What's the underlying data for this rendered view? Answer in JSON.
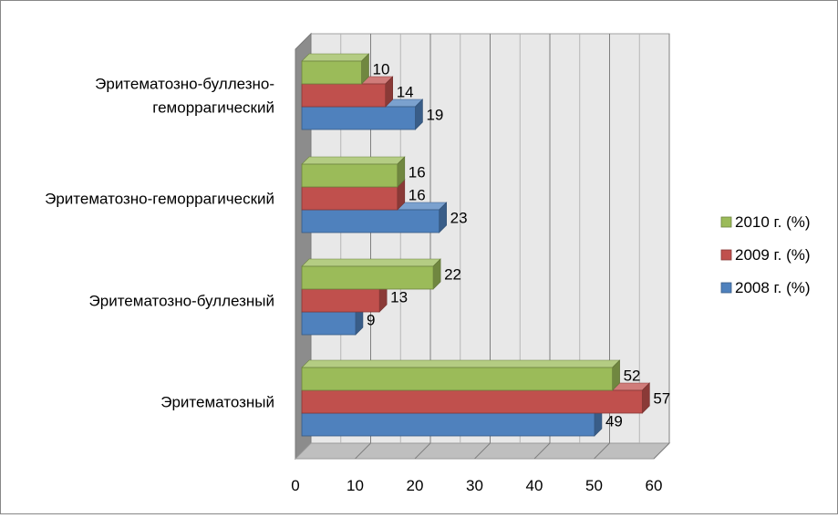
{
  "chart_data": {
    "type": "bar",
    "orientation": "horizontal",
    "style": "3d-clustered",
    "title": "",
    "xlabel": "",
    "ylabel": "",
    "xlim": [
      0,
      60
    ],
    "x_ticks": [
      0,
      10,
      20,
      30,
      40,
      50,
      60
    ],
    "grid": true,
    "legend_position": "right",
    "categories": [
      "Эритематозный",
      "Эритематозно-буллезный",
      "Эритематозно-геморрагический",
      "Эритематозно-буллезно-геморрагический"
    ],
    "category_label_lines": [
      [
        "Эритематозный"
      ],
      [
        "Эритематозно-буллезный"
      ],
      [
        "Эритематозно-геморрагический"
      ],
      [
        "Эритематозно-буллезно-",
        "геморрагический"
      ]
    ],
    "series": [
      {
        "name": "2008 г. (%)",
        "values": [
          49,
          9,
          23,
          19
        ],
        "color": "#4f81bd"
      },
      {
        "name": "2009 г. (%)",
        "values": [
          57,
          13,
          16,
          14
        ],
        "color": "#c0504d"
      },
      {
        "name": "2010 г. (%)",
        "values": [
          52,
          22,
          16,
          10
        ],
        "color": "#9bbb59"
      }
    ],
    "legend_order": [
      "2010 г. (%)",
      "2009 г. (%)",
      "2008 г. (%)"
    ]
  }
}
